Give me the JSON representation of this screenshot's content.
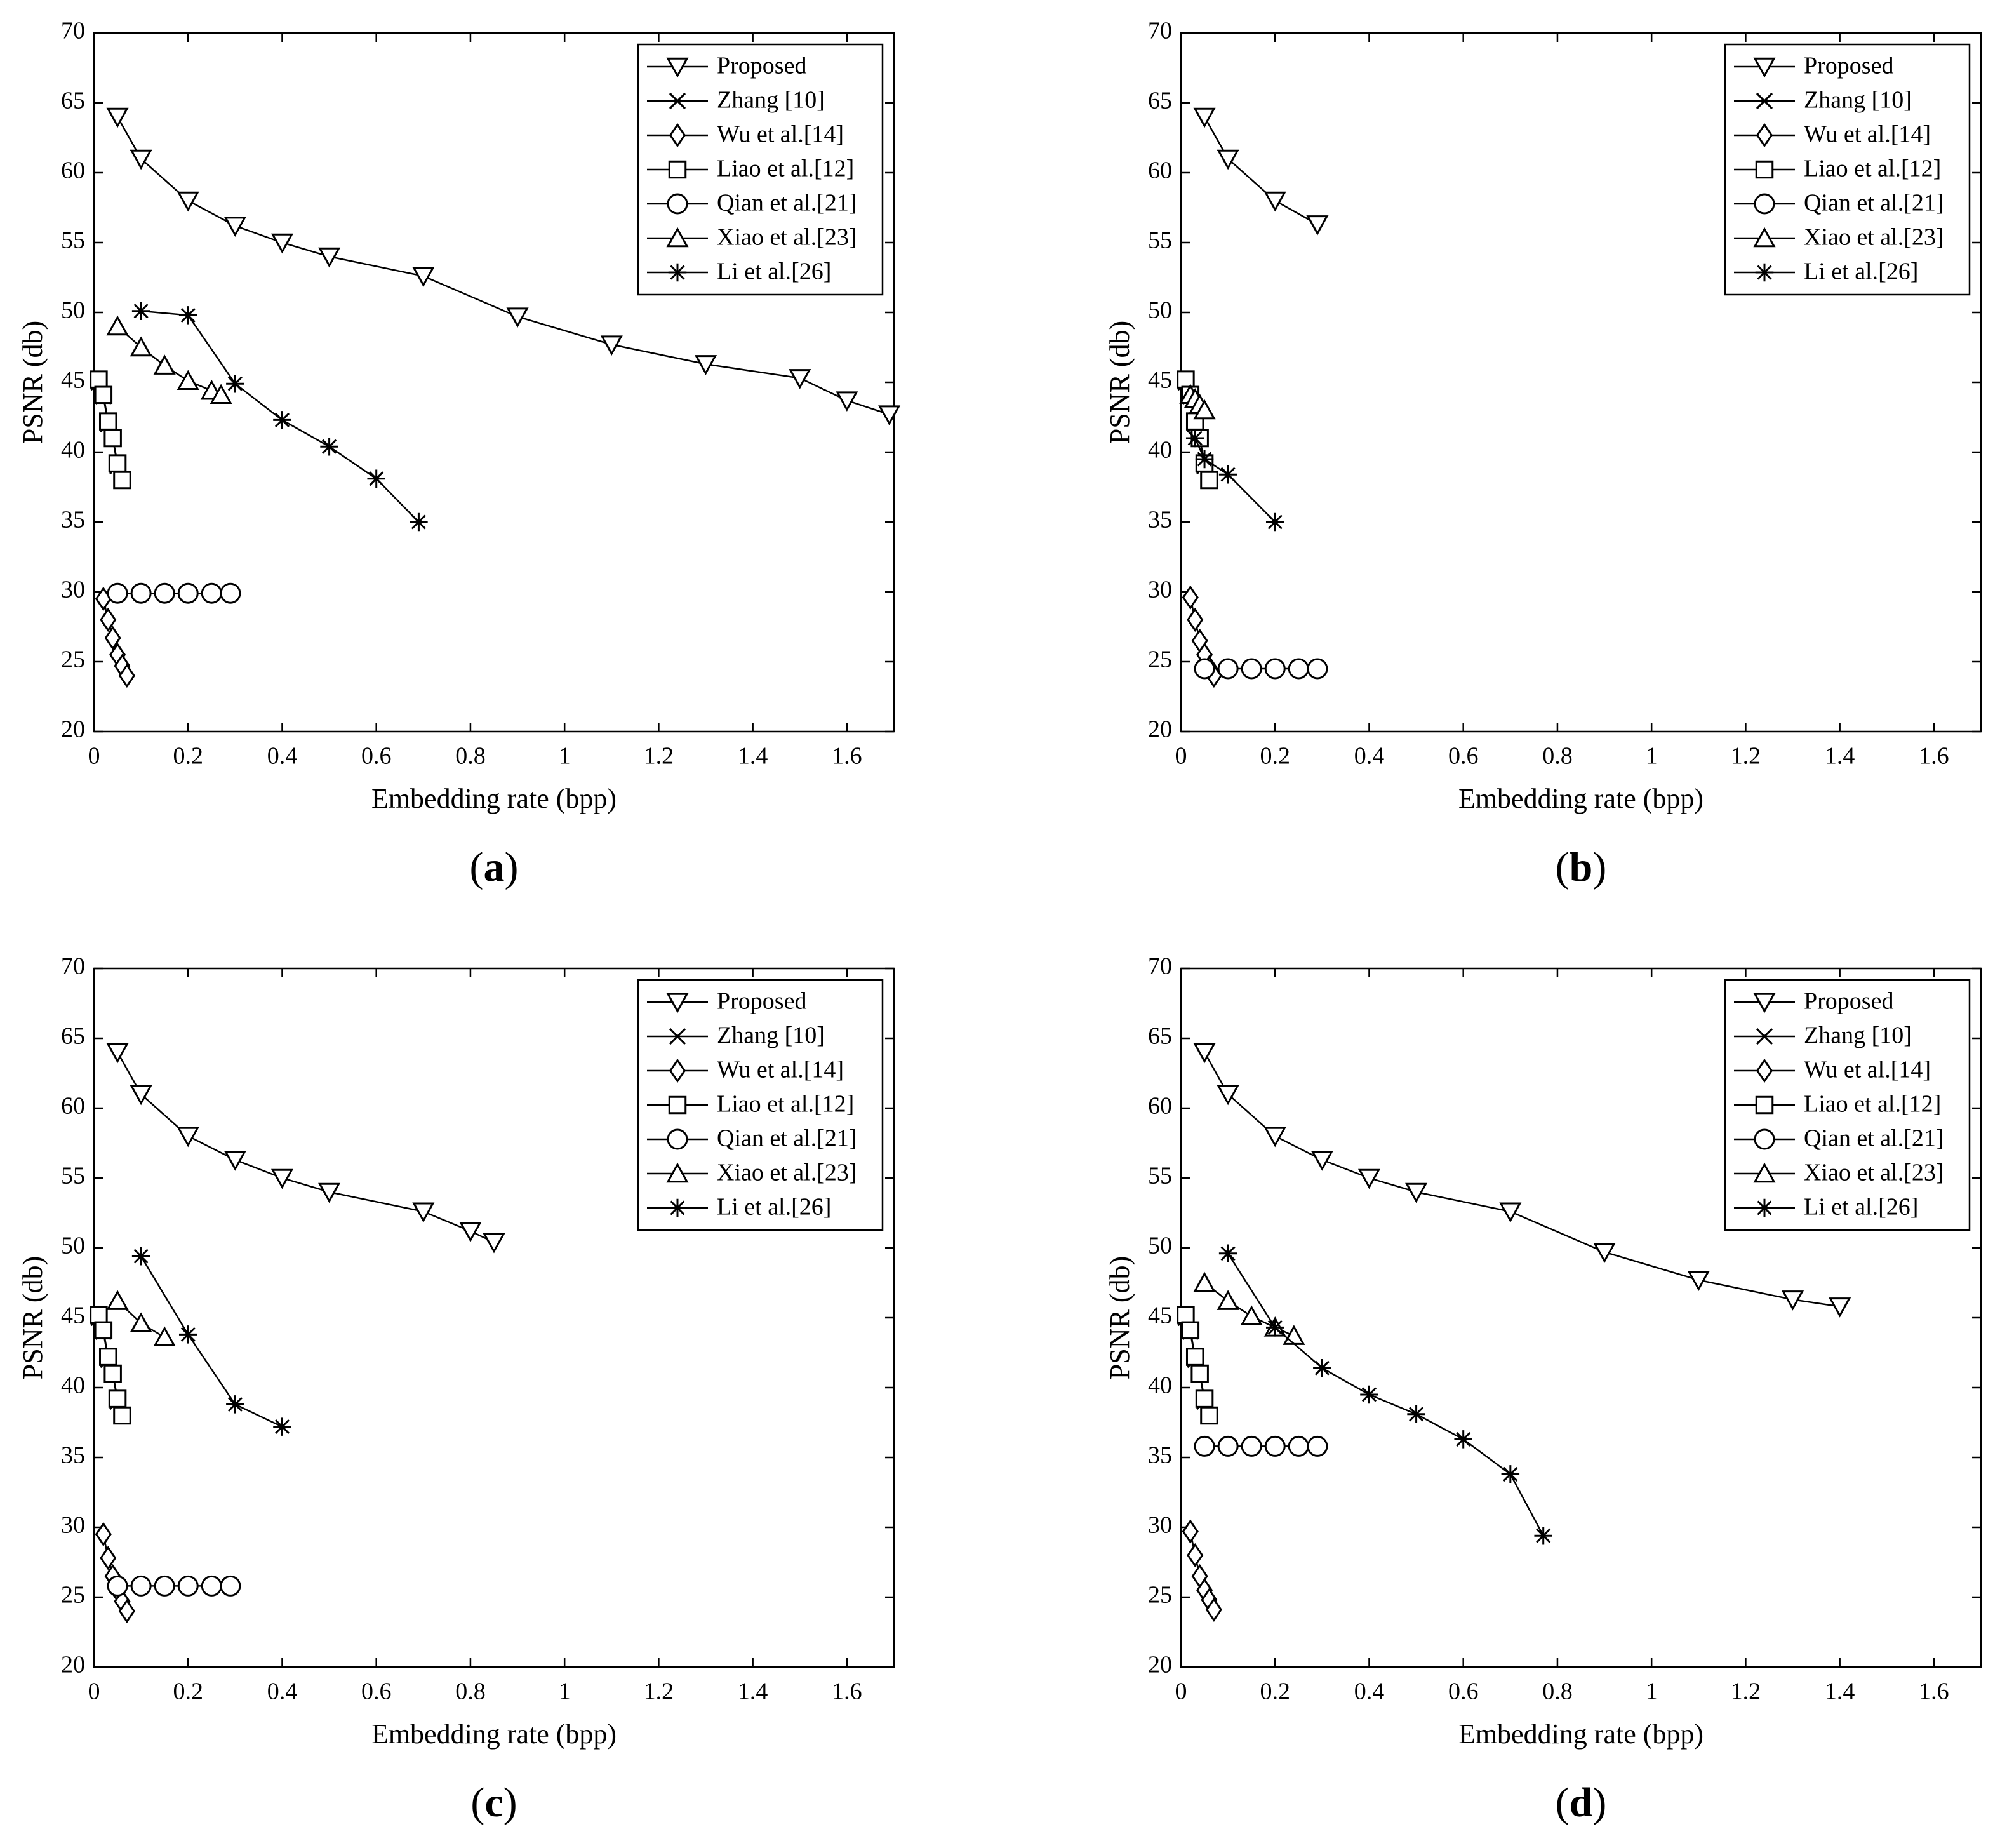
{
  "chart_data": [
    {
      "type": "line",
      "panel": "a",
      "caption": {
        "open": "(",
        "letter": "a",
        "close": ")"
      },
      "xlabel": "Embedding rate (bpp)",
      "ylabel": "PSNR (db)",
      "xlim": [
        0,
        1.7
      ],
      "ylim": [
        20,
        70
      ],
      "xticks": [
        "0",
        "0.2",
        "0.4",
        "0.6",
        "0.8",
        "1",
        "1.2",
        "1.4",
        "1.6"
      ],
      "xtick_values": [
        0,
        0.2,
        0.4,
        0.6,
        0.8,
        1,
        1.2,
        1.4,
        1.6
      ],
      "yticks": [
        "20",
        "25",
        "30",
        "35",
        "40",
        "45",
        "50",
        "55",
        "60",
        "65",
        "70"
      ],
      "ytick_values": [
        20,
        25,
        30,
        35,
        40,
        45,
        50,
        55,
        60,
        65,
        70
      ],
      "legend_position": "top-right",
      "series": [
        {
          "name": "Proposed",
          "marker": "triangle-down",
          "x": [
            0.05,
            0.1,
            0.2,
            0.3,
            0.4,
            0.5,
            0.7,
            0.9,
            1.1,
            1.3,
            1.5,
            1.6,
            1.69
          ],
          "y": [
            64,
            61,
            58,
            56.2,
            55,
            54,
            52.6,
            49.7,
            47.7,
            46.3,
            45.3,
            43.7,
            42.7
          ]
        },
        {
          "name": "Zhang [10]",
          "marker": "x",
          "x": [
            0.01,
            0.02,
            0.03,
            0.04,
            0.05,
            0.06
          ],
          "y": [
            45,
            44,
            42,
            41,
            39,
            38
          ]
        },
        {
          "name": "Wu et al.[14]",
          "marker": "diamond",
          "x": [
            0.02,
            0.03,
            0.04,
            0.05,
            0.06,
            0.07
          ],
          "y": [
            29.5,
            28,
            26.7,
            25.5,
            24.7,
            24
          ]
        },
        {
          "name": "Liao et al.[12]",
          "marker": "square",
          "x": [
            0.01,
            0.02,
            0.03,
            0.04,
            0.05,
            0.06
          ],
          "y": [
            45.2,
            44.1,
            42.2,
            41,
            39.2,
            38
          ]
        },
        {
          "name": "Qian et al.[21]",
          "marker": "circle",
          "x": [
            0.05,
            0.1,
            0.15,
            0.2,
            0.25,
            0.29
          ],
          "y": [
            29.9,
            29.9,
            29.9,
            29.9,
            29.9,
            29.9
          ]
        },
        {
          "name": "Xiao et al.[23]",
          "marker": "triangle-up",
          "x": [
            0.05,
            0.1,
            0.15,
            0.2,
            0.25,
            0.27
          ],
          "y": [
            49,
            47.5,
            46.2,
            45.1,
            44.4,
            44.1
          ]
        },
        {
          "name": "Li et al.[26]",
          "marker": "asterisk",
          "x": [
            0.1,
            0.2,
            0.3,
            0.4,
            0.5,
            0.6,
            0.69
          ],
          "y": [
            50.1,
            49.8,
            44.9,
            42.3,
            40.4,
            38.1,
            35
          ]
        }
      ]
    },
    {
      "type": "line",
      "panel": "b",
      "caption": {
        "open": "(",
        "letter": "b",
        "close": ")"
      },
      "xlabel": "Embedding rate (bpp)",
      "ylabel": "PSNR (db)",
      "xlim": [
        0,
        1.7
      ],
      "ylim": [
        20,
        70
      ],
      "xticks": [
        "0",
        "0.2",
        "0.4",
        "0.6",
        "0.8",
        "1",
        "1.2",
        "1.4",
        "1.6"
      ],
      "xtick_values": [
        0,
        0.2,
        0.4,
        0.6,
        0.8,
        1,
        1.2,
        1.4,
        1.6
      ],
      "yticks": [
        "20",
        "25",
        "30",
        "35",
        "40",
        "45",
        "50",
        "55",
        "60",
        "65",
        "70"
      ],
      "ytick_values": [
        20,
        25,
        30,
        35,
        40,
        45,
        50,
        55,
        60,
        65,
        70
      ],
      "legend_position": "top-right",
      "series": [
        {
          "name": "Proposed",
          "marker": "triangle-down",
          "x": [
            0.05,
            0.1,
            0.2,
            0.29
          ],
          "y": [
            64,
            61,
            58,
            56.3
          ]
        },
        {
          "name": "Zhang [10]",
          "marker": "x",
          "x": [
            0.01,
            0.02,
            0.03,
            0.04,
            0.05,
            0.06
          ],
          "y": [
            45,
            44,
            42,
            41,
            39,
            38
          ]
        },
        {
          "name": "Wu et al.[14]",
          "marker": "diamond",
          "x": [
            0.02,
            0.03,
            0.04,
            0.05,
            0.06,
            0.07
          ],
          "y": [
            29.6,
            28,
            26.5,
            25.5,
            24.6,
            24
          ]
        },
        {
          "name": "Liao et al.[12]",
          "marker": "square",
          "x": [
            0.01,
            0.02,
            0.03,
            0.04,
            0.05,
            0.06
          ],
          "y": [
            45.2,
            44.1,
            42.2,
            41,
            39.2,
            38
          ]
        },
        {
          "name": "Qian et al.[21]",
          "marker": "circle",
          "x": [
            0.05,
            0.1,
            0.15,
            0.2,
            0.25,
            0.29
          ],
          "y": [
            24.5,
            24.5,
            24.5,
            24.5,
            24.5,
            24.5
          ]
        },
        {
          "name": "Xiao et al.[23]",
          "marker": "triangle-up",
          "x": [
            0.02,
            0.03,
            0.04,
            0.05
          ],
          "y": [
            44.1,
            43.8,
            43.4,
            43
          ]
        },
        {
          "name": "Li et al.[26]",
          "marker": "asterisk",
          "x": [
            0.03,
            0.05,
            0.1,
            0.2
          ],
          "y": [
            41,
            39.5,
            38.4,
            35
          ]
        }
      ]
    },
    {
      "type": "line",
      "panel": "c",
      "caption": {
        "open": "(",
        "letter": "c",
        "close": ")"
      },
      "xlabel": "Embedding rate (bpp)",
      "ylabel": "PSNR (db)",
      "xlim": [
        0,
        1.7
      ],
      "ylim": [
        20,
        70
      ],
      "xticks": [
        "0",
        "0.2",
        "0.4",
        "0.6",
        "0.8",
        "1",
        "1.2",
        "1.4",
        "1.6"
      ],
      "xtick_values": [
        0,
        0.2,
        0.4,
        0.6,
        0.8,
        1,
        1.2,
        1.4,
        1.6
      ],
      "yticks": [
        "20",
        "25",
        "30",
        "35",
        "40",
        "45",
        "50",
        "55",
        "60",
        "65",
        "70"
      ],
      "ytick_values": [
        20,
        25,
        30,
        35,
        40,
        45,
        50,
        55,
        60,
        65,
        70
      ],
      "legend_position": "top-right",
      "series": [
        {
          "name": "Proposed",
          "marker": "triangle-down",
          "x": [
            0.05,
            0.1,
            0.2,
            0.3,
            0.4,
            0.5,
            0.7,
            0.8,
            0.85
          ],
          "y": [
            64,
            61,
            58,
            56.3,
            55,
            54,
            52.6,
            51.2,
            50.4
          ]
        },
        {
          "name": "Zhang [10]",
          "marker": "x",
          "x": [
            0.01,
            0.02,
            0.03,
            0.04,
            0.05,
            0.06
          ],
          "y": [
            45,
            44,
            42,
            41,
            39,
            38
          ]
        },
        {
          "name": "Wu et al.[14]",
          "marker": "diamond",
          "x": [
            0.02,
            0.03,
            0.04,
            0.05,
            0.06,
            0.07
          ],
          "y": [
            29.5,
            27.8,
            26.5,
            25.5,
            24.7,
            24
          ]
        },
        {
          "name": "Liao et al.[12]",
          "marker": "square",
          "x": [
            0.01,
            0.02,
            0.03,
            0.04,
            0.05,
            0.06
          ],
          "y": [
            45.2,
            44.1,
            42.2,
            41,
            39.2,
            38
          ]
        },
        {
          "name": "Qian et al.[21]",
          "marker": "circle",
          "x": [
            0.05,
            0.1,
            0.15,
            0.2,
            0.25,
            0.29
          ],
          "y": [
            25.8,
            25.8,
            25.8,
            25.8,
            25.8,
            25.8
          ]
        },
        {
          "name": "Xiao et al.[23]",
          "marker": "triangle-up",
          "x": [
            0.05,
            0.1,
            0.15
          ],
          "y": [
            46.2,
            44.6,
            43.6
          ]
        },
        {
          "name": "Li et al.[26]",
          "marker": "asterisk",
          "x": [
            0.1,
            0.2,
            0.3,
            0.4
          ],
          "y": [
            49.4,
            43.8,
            38.8,
            37.2
          ]
        }
      ]
    },
    {
      "type": "line",
      "panel": "d",
      "caption": {
        "open": "(",
        "letter": "d",
        "close": ")"
      },
      "xlabel": "Embedding rate (bpp)",
      "ylabel": "PSNR (db)",
      "xlim": [
        0,
        1.7
      ],
      "ylim": [
        20,
        70
      ],
      "xticks": [
        "0",
        "0.2",
        "0.4",
        "0.6",
        "0.8",
        "1",
        "1.2",
        "1.4",
        "1.6"
      ],
      "xtick_values": [
        0,
        0.2,
        0.4,
        0.6,
        0.8,
        1,
        1.2,
        1.4,
        1.6
      ],
      "yticks": [
        "20",
        "25",
        "30",
        "35",
        "40",
        "45",
        "50",
        "55",
        "60",
        "65",
        "70"
      ],
      "ytick_values": [
        20,
        25,
        30,
        35,
        40,
        45,
        50,
        55,
        60,
        65,
        70
      ],
      "legend_position": "top-right",
      "series": [
        {
          "name": "Proposed",
          "marker": "triangle-down",
          "x": [
            0.05,
            0.1,
            0.2,
            0.3,
            0.4,
            0.5,
            0.7,
            0.9,
            1.1,
            1.3,
            1.4
          ],
          "y": [
            64,
            61,
            58,
            56.3,
            55,
            54,
            52.6,
            49.7,
            47.7,
            46.3,
            45.8
          ]
        },
        {
          "name": "Zhang [10]",
          "marker": "x",
          "x": [
            0.01,
            0.02,
            0.03,
            0.04,
            0.05,
            0.06
          ],
          "y": [
            45,
            44,
            42,
            41,
            39,
            38
          ]
        },
        {
          "name": "Wu et al.[14]",
          "marker": "diamond",
          "x": [
            0.02,
            0.03,
            0.04,
            0.05,
            0.06,
            0.07
          ],
          "y": [
            29.7,
            28,
            26.5,
            25.5,
            24.8,
            24.1
          ]
        },
        {
          "name": "Liao et al.[12]",
          "marker": "square",
          "x": [
            0.01,
            0.02,
            0.03,
            0.04,
            0.05,
            0.06
          ],
          "y": [
            45.2,
            44.1,
            42.2,
            41,
            39.2,
            38
          ]
        },
        {
          "name": "Qian et al.[21]",
          "marker": "circle",
          "x": [
            0.05,
            0.1,
            0.15,
            0.2,
            0.25,
            0.29
          ],
          "y": [
            35.8,
            35.8,
            35.8,
            35.8,
            35.8,
            35.8
          ]
        },
        {
          "name": "Xiao et al.[23]",
          "marker": "triangle-up",
          "x": [
            0.05,
            0.1,
            0.15,
            0.2,
            0.24
          ],
          "y": [
            47.5,
            46.2,
            45.1,
            44.3,
            43.7
          ]
        },
        {
          "name": "Li et al.[26]",
          "marker": "asterisk",
          "x": [
            0.1,
            0.2,
            0.3,
            0.4,
            0.5,
            0.6,
            0.7,
            0.77
          ],
          "y": [
            49.6,
            44.3,
            41.4,
            39.5,
            38.1,
            36.3,
            33.8,
            29.4
          ]
        }
      ]
    }
  ]
}
